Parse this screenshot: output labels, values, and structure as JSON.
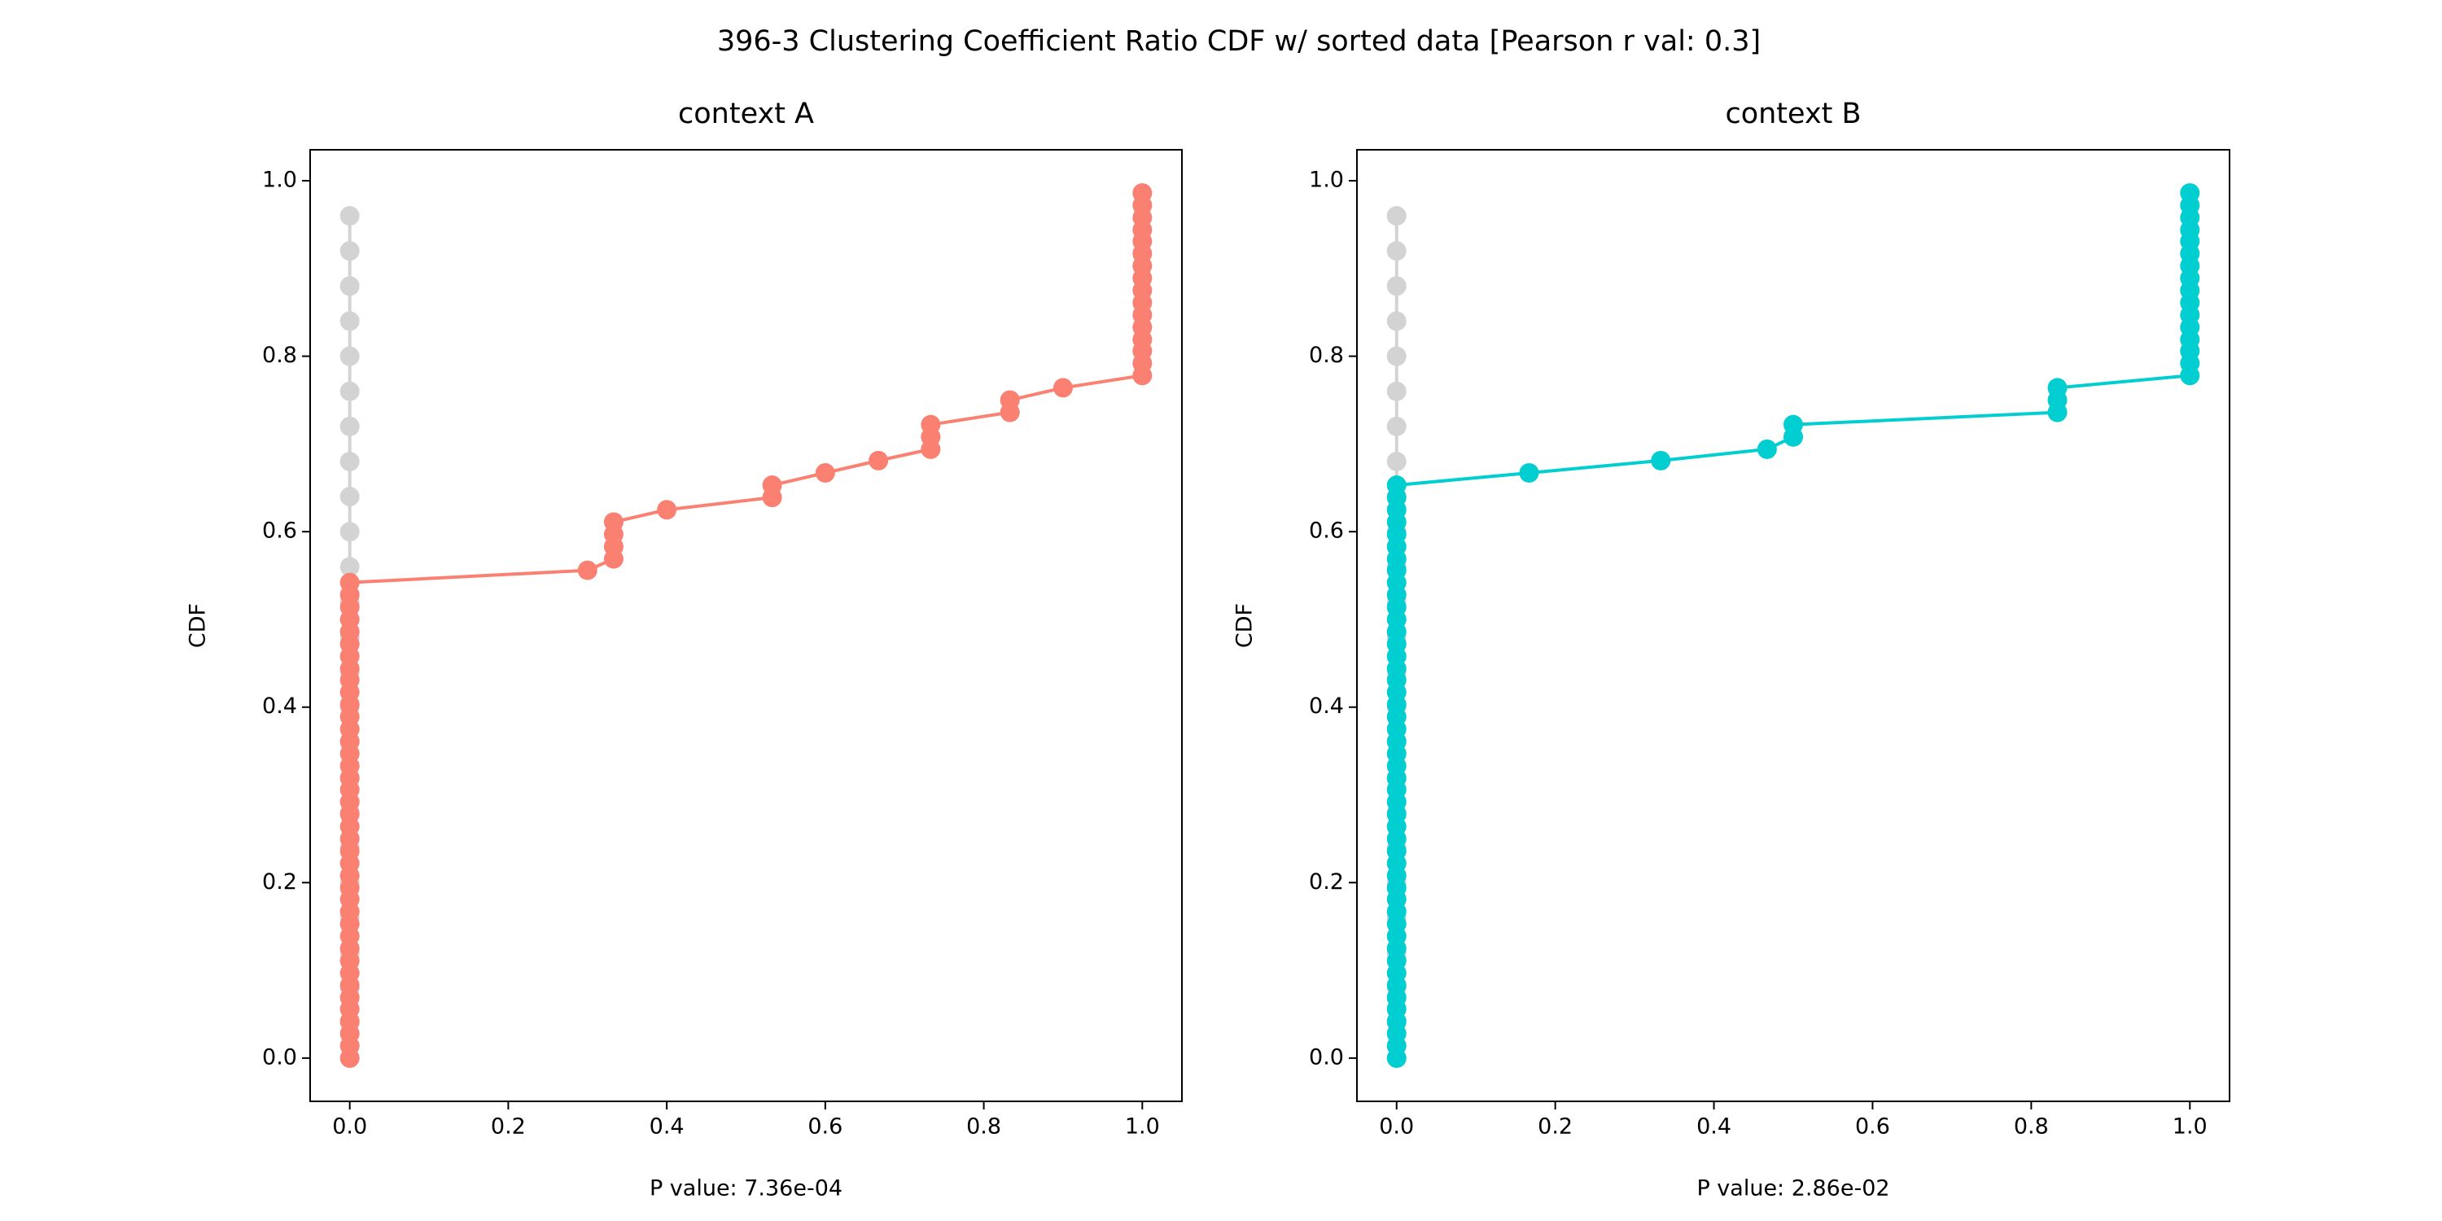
{
  "title": "396-3 Clustering Coefficient Ratio CDF w/ sorted data [Pearson r val: 0.3]",
  "chart_data": [
    {
      "type": "line",
      "title": "context A",
      "xlabel": "P value: 7.36e-04",
      "ylabel": "CDF",
      "xlim": [
        -0.05,
        1.05
      ],
      "ylim": [
        -0.0493,
        1.0353
      ],
      "xticks": [
        {
          "value": 0,
          "label": "0.0"
        },
        0.2,
        0.4,
        0.6,
        0.8,
        {
          "value": 1,
          "label": "1.0"
        }
      ],
      "yticks": [
        {
          "value": 0,
          "label": "0.0"
        },
        0.2,
        0.4,
        0.6,
        0.8,
        {
          "value": 1,
          "label": "1.0"
        }
      ],
      "series": [
        {
          "color": "#d3d3d3",
          "x": [
            0,
            0,
            0,
            0,
            0,
            0,
            0,
            0,
            0,
            0,
            0,
            0,
            0,
            0,
            0,
            0,
            0,
            0,
            0,
            0,
            0,
            0,
            0,
            0,
            0
          ],
          "values": [
            0,
            0.04,
            0.08,
            0.12,
            0.16,
            0.2,
            0.24,
            0.28,
            0.32,
            0.36,
            0.4,
            0.44,
            0.48,
            0.52,
            0.56,
            0.6,
            0.64,
            0.68,
            0.72,
            0.76,
            0.8,
            0.84,
            0.88,
            0.92,
            0.96
          ]
        },
        {
          "color": "#fa8072",
          "x": [
            0,
            0,
            0,
            0,
            0,
            0,
            0,
            0,
            0,
            0,
            0,
            0,
            0,
            0,
            0,
            0,
            0,
            0,
            0,
            0,
            0,
            0,
            0,
            0,
            0,
            0,
            0,
            0,
            0,
            0,
            0,
            0,
            0,
            0,
            0,
            0,
            0,
            0,
            0,
            0,
            0.3,
            0.333,
            0.333,
            0.333,
            0.333,
            0.4,
            0.533,
            0.533,
            0.6,
            0.667,
            0.733,
            0.733,
            0.733,
            0.833,
            0.833,
            0.9,
            1,
            1,
            1,
            1,
            1,
            1,
            1,
            1,
            1,
            1,
            1,
            1,
            1,
            1,
            1,
            1
          ],
          "values": [
            0,
            0.014,
            0.028,
            0.042,
            0.056,
            0.069,
            0.083,
            0.097,
            0.111,
            0.125,
            0.139,
            0.153,
            0.167,
            0.181,
            0.194,
            0.208,
            0.222,
            0.236,
            0.25,
            0.264,
            0.278,
            0.292,
            0.306,
            0.319,
            0.333,
            0.347,
            0.361,
            0.375,
            0.389,
            0.403,
            0.417,
            0.431,
            0.444,
            0.458,
            0.472,
            0.486,
            0.5,
            0.514,
            0.528,
            0.542,
            0.556,
            0.569,
            0.583,
            0.597,
            0.611,
            0.625,
            0.639,
            0.653,
            0.667,
            0.681,
            0.694,
            0.708,
            0.722,
            0.736,
            0.75,
            0.764,
            0.778,
            0.792,
            0.806,
            0.819,
            0.833,
            0.847,
            0.861,
            0.875,
            0.889,
            0.903,
            0.917,
            0.931,
            0.944,
            0.958,
            0.972,
            0.986
          ]
        }
      ]
    },
    {
      "type": "line",
      "title": "context B",
      "xlabel": "P value: 2.86e-02",
      "ylabel": "CDF",
      "xlim": [
        -0.05,
        1.05
      ],
      "ylim": [
        -0.0493,
        1.0353
      ],
      "xticks": [
        {
          "value": 0,
          "label": "0.0"
        },
        0.2,
        0.4,
        0.6,
        0.8,
        {
          "value": 1,
          "label": "1.0"
        }
      ],
      "yticks": [
        {
          "value": 0,
          "label": "0.0"
        },
        0.2,
        0.4,
        0.6,
        0.8,
        {
          "value": 1,
          "label": "1.0"
        }
      ],
      "series": [
        {
          "color": "#d3d3d3",
          "x": [
            0,
            0,
            0,
            0,
            0,
            0,
            0,
            0,
            0,
            0,
            0,
            0,
            0,
            0,
            0,
            0,
            0,
            0,
            0,
            0,
            0,
            0,
            0,
            0,
            0
          ],
          "values": [
            0,
            0.04,
            0.08,
            0.12,
            0.16,
            0.2,
            0.24,
            0.28,
            0.32,
            0.36,
            0.4,
            0.44,
            0.48,
            0.52,
            0.56,
            0.6,
            0.64,
            0.68,
            0.72,
            0.76,
            0.8,
            0.84,
            0.88,
            0.92,
            0.96
          ]
        },
        {
          "color": "#00ced1",
          "x": [
            0,
            0,
            0,
            0,
            0,
            0,
            0,
            0,
            0,
            0,
            0,
            0,
            0,
            0,
            0,
            0,
            0,
            0,
            0,
            0,
            0,
            0,
            0,
            0,
            0,
            0,
            0,
            0,
            0,
            0,
            0,
            0,
            0,
            0,
            0,
            0,
            0,
            0,
            0,
            0,
            0,
            0,
            0,
            0,
            0,
            0,
            0,
            0,
            0.167,
            0.333,
            0.467,
            0.5,
            0.5,
            0.833,
            0.833,
            0.833,
            1,
            1,
            1,
            1,
            1,
            1,
            1,
            1,
            1,
            1,
            1,
            1,
            1,
            1,
            1,
            1
          ],
          "values": [
            0,
            0.014,
            0.028,
            0.042,
            0.056,
            0.069,
            0.083,
            0.097,
            0.111,
            0.125,
            0.139,
            0.153,
            0.167,
            0.181,
            0.194,
            0.208,
            0.222,
            0.236,
            0.25,
            0.264,
            0.278,
            0.292,
            0.306,
            0.319,
            0.333,
            0.347,
            0.361,
            0.375,
            0.389,
            0.403,
            0.417,
            0.431,
            0.444,
            0.458,
            0.472,
            0.486,
            0.5,
            0.514,
            0.528,
            0.542,
            0.556,
            0.569,
            0.583,
            0.597,
            0.611,
            0.625,
            0.639,
            0.653,
            0.667,
            0.681,
            0.694,
            0.708,
            0.722,
            0.736,
            0.75,
            0.764,
            0.778,
            0.792,
            0.806,
            0.819,
            0.833,
            0.847,
            0.861,
            0.875,
            0.889,
            0.903,
            0.917,
            0.931,
            0.944,
            0.958,
            0.972,
            0.986
          ]
        }
      ]
    }
  ]
}
